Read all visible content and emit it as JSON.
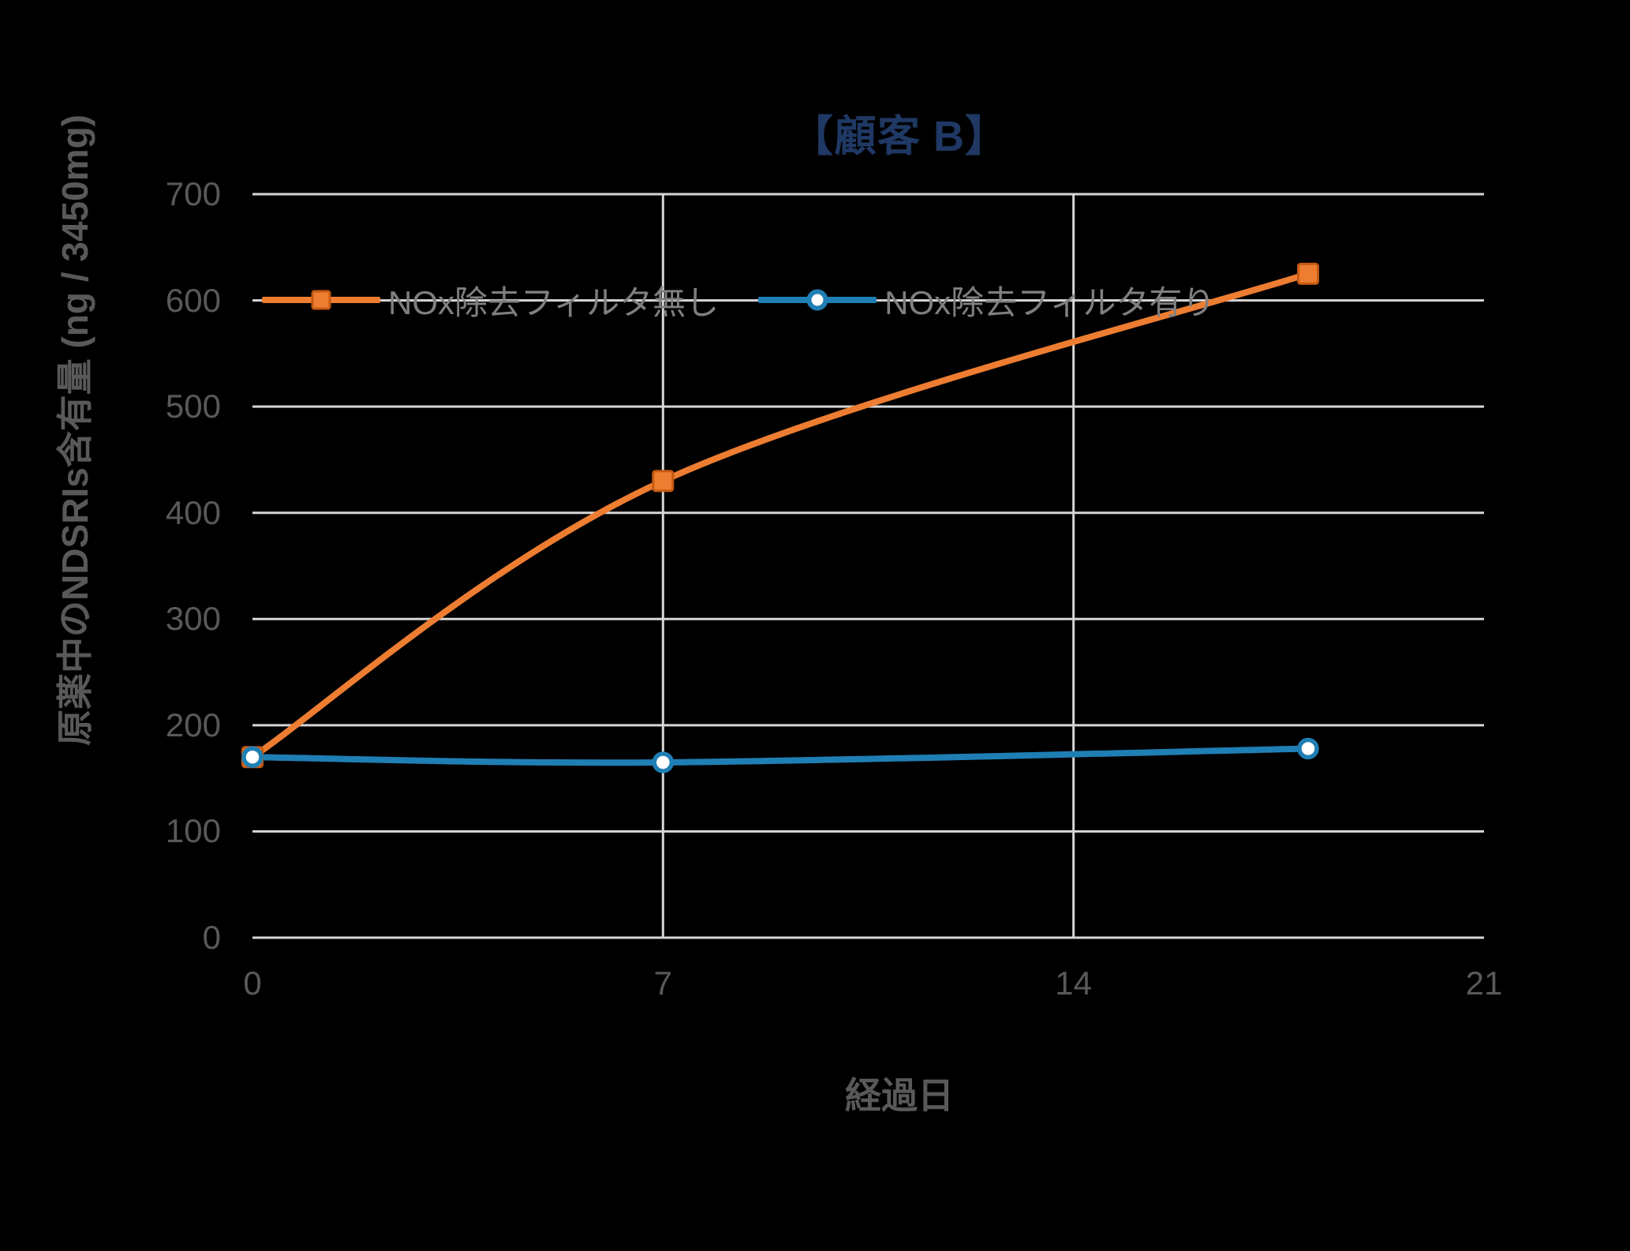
{
  "chart_data": {
    "type": "line",
    "title": "【顧客 B】",
    "title_color": "#1F3864",
    "xlabel": "経過日",
    "ylabel": "原薬中のNDSRIs含有量 (ng / 3450mg)",
    "xlim": [
      0,
      21
    ],
    "ylim": [
      0,
      700
    ],
    "x_ticks": [
      0,
      7,
      14,
      21
    ],
    "y_ticks": [
      0,
      100,
      200,
      300,
      400,
      500,
      600,
      700
    ],
    "grid": {
      "horizontal_at": [
        0,
        100,
        200,
        300,
        400,
        500,
        600,
        700
      ],
      "vertical_at": [
        7,
        14
      ],
      "color": "#D6D6D6"
    },
    "smooth": true,
    "legend_position": "inside-top",
    "series": [
      {
        "name": "NOx除去フィルタ無し",
        "x": [
          0,
          7,
          18
        ],
        "values": [
          170,
          430,
          625
        ],
        "color": "#ED7D31",
        "marker": "square",
        "marker_fill": "#ED7D31",
        "marker_border": "#C55A11"
      },
      {
        "name": "NOx除去フィルタ有り",
        "x": [
          0,
          7,
          18
        ],
        "values": [
          170,
          165,
          178
        ],
        "color": "#1F7FB4",
        "marker": "circle",
        "marker_fill": "#FFFFFF",
        "marker_border": "#1F7FB4"
      }
    ]
  },
  "styles": {
    "background": "#000000",
    "tick_label_color": "#595959",
    "axis_title_color": "#595959",
    "legend_text_color": "#7F7F7F",
    "gridline_color": "#D6D6D6"
  }
}
